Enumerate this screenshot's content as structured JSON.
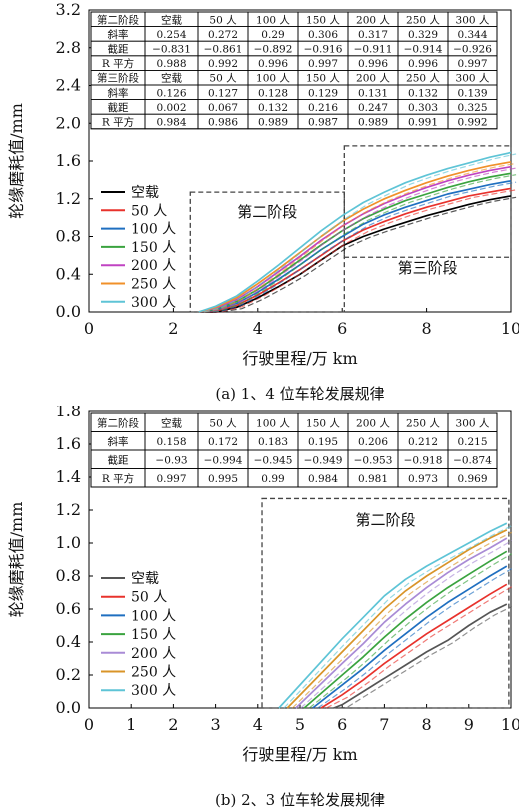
{
  "chart_data": [
    {
      "type": "line",
      "caption": "(a) 1、4 位车轮发展规律",
      "xlabel": "行驶里程/万 km",
      "ylabel": "轮缘磨耗值/mm",
      "xlim": [
        0,
        10
      ],
      "ylim": [
        0,
        3.2
      ],
      "xticks": [
        0,
        2,
        4,
        6,
        8,
        10
      ],
      "yticks": [
        0.0,
        0.4,
        0.8,
        1.2,
        1.6,
        2.0,
        2.4,
        2.8,
        3.2
      ],
      "legend": {
        "position": "bottom-left",
        "entries": [
          "空载",
          "50 人",
          "100 人",
          "150 人",
          "200 人",
          "250 人",
          "300 人"
        ]
      },
      "series": [
        {
          "name": "空载",
          "color": "#000000",
          "x": [
            2.6,
            3.0,
            3.5,
            4.0,
            4.5,
            5.0,
            5.5,
            6.0,
            6.5,
            7.0,
            7.5,
            8.0,
            8.5,
            9.0,
            9.5,
            10.0
          ],
          "y": [
            0.0,
            0.0,
            0.05,
            0.15,
            0.27,
            0.4,
            0.55,
            0.7,
            0.8,
            0.88,
            0.95,
            1.02,
            1.08,
            1.14,
            1.19,
            1.23
          ]
        },
        {
          "name": "50 人",
          "color": "#e8322c",
          "x": [
            2.6,
            3.0,
            3.5,
            4.0,
            4.5,
            5.0,
            5.5,
            6.0,
            6.5,
            7.0,
            7.5,
            8.0,
            8.5,
            9.0,
            9.5,
            10.0
          ],
          "y": [
            0.0,
            0.01,
            0.07,
            0.18,
            0.31,
            0.45,
            0.6,
            0.75,
            0.87,
            0.96,
            1.04,
            1.11,
            1.17,
            1.23,
            1.27,
            1.31
          ]
        },
        {
          "name": "100 人",
          "color": "#1f6fc0",
          "x": [
            2.6,
            3.0,
            3.5,
            4.0,
            4.5,
            5.0,
            5.5,
            6.0,
            6.5,
            7.0,
            7.5,
            8.0,
            8.5,
            9.0,
            9.5,
            10.0
          ],
          "y": [
            0.0,
            0.02,
            0.09,
            0.21,
            0.35,
            0.5,
            0.66,
            0.8,
            0.93,
            1.03,
            1.11,
            1.18,
            1.25,
            1.3,
            1.35,
            1.39
          ]
        },
        {
          "name": "150 人",
          "color": "#3aa33f",
          "x": [
            2.6,
            3.0,
            3.5,
            4.0,
            4.5,
            5.0,
            5.5,
            6.0,
            6.5,
            7.0,
            7.5,
            8.0,
            8.5,
            9.0,
            9.5,
            10.0
          ],
          "y": [
            0.0,
            0.03,
            0.11,
            0.24,
            0.39,
            0.55,
            0.71,
            0.86,
            0.99,
            1.09,
            1.18,
            1.25,
            1.32,
            1.38,
            1.43,
            1.47
          ]
        },
        {
          "name": "200 人",
          "color": "#c043c2",
          "x": [
            2.6,
            3.0,
            3.5,
            4.0,
            4.5,
            5.0,
            5.5,
            6.0,
            6.5,
            7.0,
            7.5,
            8.0,
            8.5,
            9.0,
            9.5,
            10.0
          ],
          "y": [
            0.0,
            0.04,
            0.13,
            0.27,
            0.43,
            0.59,
            0.76,
            0.91,
            1.04,
            1.15,
            1.24,
            1.32,
            1.39,
            1.45,
            1.5,
            1.54
          ]
        },
        {
          "name": "250 人",
          "color": "#f0902a",
          "x": [
            2.6,
            3.0,
            3.5,
            4.0,
            4.5,
            5.0,
            5.5,
            6.0,
            6.5,
            7.0,
            7.5,
            8.0,
            8.5,
            9.0,
            9.5,
            10.0
          ],
          "y": [
            0.0,
            0.05,
            0.15,
            0.3,
            0.46,
            0.63,
            0.8,
            0.96,
            1.09,
            1.2,
            1.29,
            1.37,
            1.44,
            1.5,
            1.55,
            1.59
          ]
        },
        {
          "name": "300 人",
          "color": "#5ec4d6",
          "x": [
            2.6,
            3.0,
            3.5,
            4.0,
            4.5,
            5.0,
            5.5,
            6.0,
            6.5,
            7.0,
            7.5,
            8.0,
            8.5,
            9.0,
            9.5,
            10.0
          ],
          "y": [
            0.0,
            0.06,
            0.17,
            0.33,
            0.5,
            0.68,
            0.86,
            1.02,
            1.16,
            1.27,
            1.37,
            1.45,
            1.52,
            1.58,
            1.64,
            1.69
          ]
        }
      ],
      "annotations": [
        {
          "text": "第二阶段",
          "box": {
            "x0": 2.4,
            "x1": 6.05,
            "y0": 0.0,
            "y1": 1.27
          }
        },
        {
          "text": "第三阶段",
          "box": {
            "x0": 6.05,
            "x1": 10.0,
            "y0": 0.58,
            "y1": 1.76
          }
        }
      ],
      "table": {
        "rows": [
          [
            "第二阶段",
            "空载",
            "50 人",
            "100 人",
            "150 人",
            "200 人",
            "250 人",
            "300 人"
          ],
          [
            "斜率",
            "0.254",
            "0.272",
            "0.29",
            "0.306",
            "0.317",
            "0.329",
            "0.344"
          ],
          [
            "截距",
            "−0.831",
            "−0.861",
            "−0.892",
            "−0.916",
            "−0.911",
            "−0.914",
            "−0.926"
          ],
          [
            "R 平方",
            "0.988",
            "0.992",
            "0.996",
            "0.997",
            "0.996",
            "0.996",
            "0.997"
          ],
          [
            "第三阶段",
            "空载",
            "50 人",
            "100 人",
            "150 人",
            "200 人",
            "250 人",
            "300 人"
          ],
          [
            "斜率",
            "0.126",
            "0.127",
            "0.128",
            "0.129",
            "0.131",
            "0.132",
            "0.139"
          ],
          [
            "截距",
            "0.002",
            "0.067",
            "0.132",
            "0.216",
            "0.247",
            "0.303",
            "0.325"
          ],
          [
            "R 平方",
            "0.984",
            "0.986",
            "0.989",
            "0.987",
            "0.989",
            "0.991",
            "0.992"
          ]
        ]
      }
    },
    {
      "type": "line",
      "caption": "(b) 2、3 位车轮发展规律",
      "xlabel": "行驶里程/万 km",
      "ylabel": "轮缘磨耗值/mm",
      "xlim": [
        0,
        10
      ],
      "ylim": [
        0,
        1.8
      ],
      "xticks": [
        0,
        1,
        2,
        3,
        4,
        5,
        6,
        7,
        8,
        9,
        10
      ],
      "yticks": [
        0.0,
        0.2,
        0.4,
        0.6,
        0.8,
        1.0,
        1.2,
        1.4,
        1.6,
        1.8
      ],
      "legend": {
        "position": "bottom-left",
        "entries": [
          "空载",
          "50 人",
          "100 人",
          "150 人",
          "200 人",
          "250 人",
          "300 人"
        ]
      },
      "series": [
        {
          "name": "空载",
          "color": "#555555",
          "x": [
            5.8,
            6.0,
            6.5,
            7.0,
            7.5,
            8.0,
            8.5,
            9.0,
            9.5,
            9.9
          ],
          "y": [
            0.0,
            0.02,
            0.1,
            0.18,
            0.26,
            0.34,
            0.41,
            0.5,
            0.58,
            0.63
          ]
        },
        {
          "name": "50 人",
          "color": "#e8322c",
          "x": [
            5.5,
            6.0,
            6.5,
            7.0,
            7.5,
            8.0,
            8.5,
            9.0,
            9.5,
            9.9
          ],
          "y": [
            0.0,
            0.08,
            0.17,
            0.27,
            0.36,
            0.45,
            0.53,
            0.61,
            0.69,
            0.75
          ]
        },
        {
          "name": "100 人",
          "color": "#1f6fc0",
          "x": [
            5.3,
            6.0,
            6.5,
            7.0,
            7.5,
            8.0,
            8.5,
            9.0,
            9.5,
            9.9
          ],
          "y": [
            0.0,
            0.14,
            0.24,
            0.35,
            0.45,
            0.55,
            0.64,
            0.72,
            0.8,
            0.86
          ]
        },
        {
          "name": "150 人",
          "color": "#3aa33f",
          "x": [
            5.1,
            6.0,
            6.5,
            7.0,
            7.5,
            8.0,
            8.5,
            9.0,
            9.5,
            9.9
          ],
          "y": [
            0.0,
            0.2,
            0.31,
            0.43,
            0.54,
            0.64,
            0.73,
            0.81,
            0.89,
            0.95
          ]
        },
        {
          "name": "200 人",
          "color": "#a98bd6",
          "x": [
            4.9,
            6.0,
            6.5,
            7.0,
            7.5,
            8.0,
            8.5,
            9.0,
            9.5,
            9.9
          ],
          "y": [
            0.0,
            0.27,
            0.39,
            0.52,
            0.63,
            0.73,
            0.82,
            0.9,
            0.97,
            1.03
          ]
        },
        {
          "name": "250 人",
          "color": "#d99428",
          "x": [
            4.7,
            6.0,
            6.5,
            7.0,
            7.5,
            8.0,
            8.5,
            9.0,
            9.5,
            9.9
          ],
          "y": [
            0.0,
            0.34,
            0.47,
            0.6,
            0.71,
            0.8,
            0.88,
            0.96,
            1.03,
            1.08
          ]
        },
        {
          "name": "300 人",
          "color": "#5ec4d6",
          "x": [
            4.5,
            6.0,
            6.5,
            7.0,
            7.5,
            8.0,
            8.5,
            9.0,
            9.5,
            9.9
          ],
          "y": [
            0.0,
            0.42,
            0.55,
            0.68,
            0.78,
            0.86,
            0.93,
            1.0,
            1.07,
            1.12
          ]
        }
      ],
      "annotations": [
        {
          "text": "第二阶段",
          "box": {
            "x0": 4.1,
            "x1": 9.95,
            "y0": 0.0,
            "y1": 1.27
          }
        }
      ],
      "table": {
        "rows": [
          [
            "第二阶段",
            "空载",
            "50 人",
            "100 人",
            "150 人",
            "200 人",
            "250 人",
            "300 人"
          ],
          [
            "斜率",
            "0.158",
            "0.172",
            "0.183",
            "0.195",
            "0.206",
            "0.212",
            "0.215"
          ],
          [
            "截距",
            "−0.93",
            "−0.994",
            "−0.945",
            "−0.949",
            "−0.953",
            "−0.918",
            "−0.874"
          ],
          [
            "R 平方",
            "0.997",
            "0.995",
            "0.99",
            "0.984",
            "0.981",
            "0.973",
            "0.969"
          ]
        ]
      }
    }
  ]
}
